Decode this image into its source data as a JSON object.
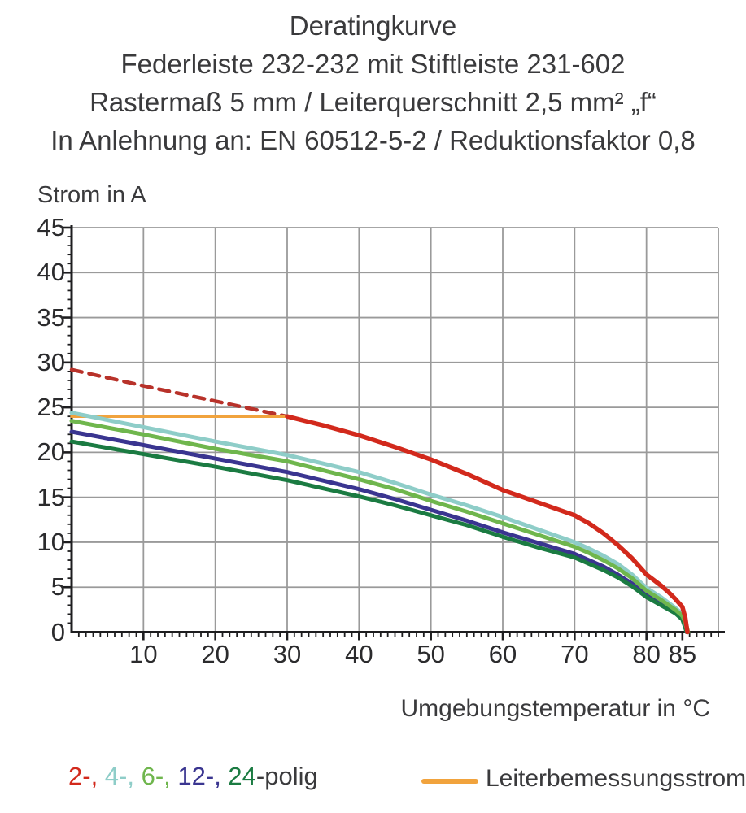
{
  "title_block": {
    "line1": "Deratingkurve",
    "line2": "Federleiste 232-232 mit Stiftleiste 231-602",
    "line3": "Rastermaß 5 mm / Leiterquerschnitt 2,5 mm² „f“",
    "line4": "In Anlehnung an: EN 60512-5-2 / Reduktionsfaktor 0,8"
  },
  "axes": {
    "y_title": "Strom in A",
    "x_title": "Umgebungstemperatur in °C"
  },
  "legend": {
    "poles": [
      {
        "id": "2",
        "label": "2-, ",
        "color": "#d2291c"
      },
      {
        "id": "4",
        "label": "4-, ",
        "color": "#8ecdc8"
      },
      {
        "id": "6",
        "label": "6-, ",
        "color": "#6fb64d"
      },
      {
        "id": "12",
        "label": "12-, ",
        "color": "#3a3590"
      },
      {
        "id": "24",
        "label": "24",
        "color": "#1b7b42"
      }
    ],
    "poles_suffix": "-polig",
    "rated_current": {
      "label": "Leiterbemessungsstrom",
      "color": "#f1a33d"
    }
  },
  "chart_data": {
    "type": "line",
    "title": "Deratingkurve",
    "xlabel": "Umgebungstemperatur in °C",
    "ylabel": "Strom in A",
    "xlim": [
      0,
      90
    ],
    "ylim": [
      0,
      45
    ],
    "x_major_ticks": [
      10,
      20,
      30,
      40,
      50,
      60,
      70,
      80,
      85
    ],
    "y_major_ticks": [
      0,
      5,
      10,
      15,
      20,
      25,
      30,
      35,
      40,
      45
    ],
    "x_minor_step": 1,
    "y_minor_step": 1,
    "grid": true,
    "grid_color": "#9a9a9a",
    "axis_color": "#1d1d1f",
    "legend_position": "bottom",
    "series": [
      {
        "id": "2-polig-dashed",
        "name": "2-polig (oberhalb Leiterbemessungsstrom, gestrichelt)",
        "color": "#b8322a",
        "width": 4.5,
        "dash": "13 9",
        "points": [
          [
            0,
            29.2
          ],
          [
            10,
            27.4
          ],
          [
            20,
            25.7
          ],
          [
            30,
            24
          ]
        ]
      },
      {
        "id": "leiterbemessungsstrom",
        "name": "Leiterbemessungsstrom",
        "color": "#f1a33d",
        "width": 3.5,
        "points": [
          [
            0,
            24
          ],
          [
            30.5,
            24
          ]
        ]
      },
      {
        "id": "12-polig",
        "name": "12-polig",
        "color": "#3a3590",
        "width": 5,
        "points": [
          [
            0,
            22.3
          ],
          [
            10,
            20.8
          ],
          [
            20,
            19.3
          ],
          [
            30,
            17.8
          ],
          [
            40,
            15.9
          ],
          [
            45,
            14.8
          ],
          [
            50,
            13.6
          ],
          [
            55,
            12.4
          ],
          [
            60,
            11.1
          ],
          [
            65,
            9.9
          ],
          [
            70,
            8.7
          ],
          [
            72,
            8.0
          ],
          [
            74,
            7.3
          ],
          [
            76,
            6.4
          ],
          [
            78,
            5.4
          ],
          [
            80,
            4.1
          ],
          [
            82,
            3.2
          ],
          [
            84,
            2.2
          ],
          [
            85,
            1.5
          ],
          [
            85.3,
            0.8
          ],
          [
            85.6,
            0
          ]
        ]
      },
      {
        "id": "24-polig",
        "name": "24-polig",
        "color": "#1b7b42",
        "width": 5,
        "points": [
          [
            0,
            21.2
          ],
          [
            10,
            19.8
          ],
          [
            20,
            18.4
          ],
          [
            30,
            16.9
          ],
          [
            40,
            15.1
          ],
          [
            45,
            14.1
          ],
          [
            50,
            13.0
          ],
          [
            55,
            11.9
          ],
          [
            60,
            10.6
          ],
          [
            65,
            9.4
          ],
          [
            70,
            8.3
          ],
          [
            72,
            7.6
          ],
          [
            74,
            6.9
          ],
          [
            76,
            6.1
          ],
          [
            78,
            5.1
          ],
          [
            80,
            3.9
          ],
          [
            82,
            3.0
          ],
          [
            84,
            2.1
          ],
          [
            85,
            1.4
          ],
          [
            85.3,
            0.7
          ],
          [
            85.6,
            0
          ]
        ]
      },
      {
        "id": "4-polig",
        "name": "4-polig",
        "color": "#8ecdc8",
        "width": 5,
        "points": [
          [
            0,
            24.4
          ],
          [
            10,
            22.8
          ],
          [
            20,
            21.2
          ],
          [
            30,
            19.7
          ],
          [
            40,
            17.8
          ],
          [
            45,
            16.6
          ],
          [
            50,
            15.3
          ],
          [
            55,
            14.1
          ],
          [
            60,
            12.8
          ],
          [
            65,
            11.4
          ],
          [
            70,
            10.0
          ],
          [
            72,
            9.3
          ],
          [
            74,
            8.5
          ],
          [
            76,
            7.6
          ],
          [
            78,
            6.4
          ],
          [
            80,
            4.9
          ],
          [
            82,
            3.9
          ],
          [
            84,
            2.7
          ],
          [
            85,
            2.0
          ],
          [
            85.4,
            1.1
          ],
          [
            85.7,
            0
          ]
        ]
      },
      {
        "id": "6-polig",
        "name": "6-polig",
        "color": "#6fb64d",
        "width": 5,
        "points": [
          [
            0,
            23.5
          ],
          [
            10,
            22.0
          ],
          [
            20,
            20.4
          ],
          [
            30,
            19.0
          ],
          [
            40,
            17.0
          ],
          [
            45,
            15.9
          ],
          [
            50,
            14.6
          ],
          [
            55,
            13.4
          ],
          [
            60,
            12.1
          ],
          [
            65,
            10.8
          ],
          [
            70,
            9.5
          ],
          [
            72,
            8.8
          ],
          [
            74,
            8.0
          ],
          [
            76,
            7.1
          ],
          [
            78,
            6.0
          ],
          [
            80,
            4.6
          ],
          [
            82,
            3.6
          ],
          [
            84,
            2.5
          ],
          [
            85,
            1.8
          ],
          [
            85.5,
            0.9
          ],
          [
            85.8,
            0
          ]
        ]
      },
      {
        "id": "2-polig",
        "name": "2-polig",
        "color": "#d2291c",
        "width": 5.5,
        "points": [
          [
            30,
            24
          ],
          [
            35,
            23
          ],
          [
            40,
            21.9
          ],
          [
            45,
            20.6
          ],
          [
            50,
            19.2
          ],
          [
            55,
            17.6
          ],
          [
            60,
            15.8
          ],
          [
            65,
            14.4
          ],
          [
            70,
            13.0
          ],
          [
            72,
            12.1
          ],
          [
            74,
            11.0
          ],
          [
            76,
            9.7
          ],
          [
            78,
            8.2
          ],
          [
            80,
            6.4
          ],
          [
            82,
            5.2
          ],
          [
            83,
            4.5
          ],
          [
            84,
            3.7
          ],
          [
            85,
            2.8
          ],
          [
            85.4,
            1.6
          ],
          [
            85.7,
            0
          ]
        ]
      }
    ]
  }
}
